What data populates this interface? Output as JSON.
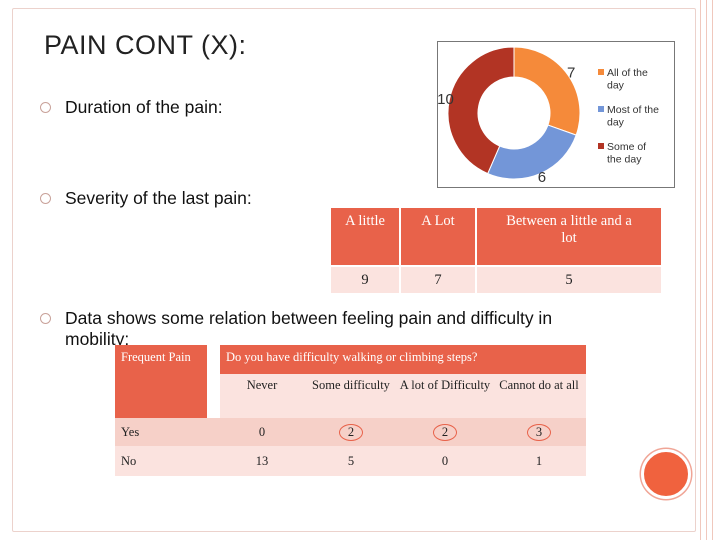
{
  "title": "PAIN CONT (X):",
  "bullets": [
    "Duration of the pain:",
    "Severity of the last pain:",
    "Data shows some relation between feeling pain and difficulty in",
    "mobility:"
  ],
  "chart_data": {
    "type": "pie",
    "style": "donut",
    "title": "",
    "categories": [
      "All of the day",
      "Most of the day",
      "Some of the day"
    ],
    "values": [
      7,
      6,
      10
    ],
    "colors": [
      "#f58a3a",
      "#7396d8",
      "#b23424"
    ],
    "legend": {
      "position": "right",
      "lines": [
        [
          "All of the",
          "day"
        ],
        [
          "Most of the",
          "day"
        ],
        [
          "Some of",
          "the day"
        ]
      ]
    }
  },
  "severity_table": {
    "headers": [
      "A little",
      "A Lot",
      "Between a little and a lot"
    ],
    "header_lines": [
      [
        "A little"
      ],
      [
        "A Lot"
      ],
      [
        "Between a little and a",
        "lot"
      ]
    ],
    "values": [
      "9",
      "7",
      "5"
    ]
  },
  "mobility_table": {
    "corner": "Frequent Pain",
    "question": "Do you have difficulty walking or climbing steps?",
    "columns": [
      "Never",
      "Some difficulty",
      "A lot of Difficulty",
      "Cannot do at all"
    ],
    "rows": [
      {
        "label": "Yes",
        "values": [
          "0",
          "2",
          "2",
          "3"
        ]
      },
      {
        "label": "No",
        "values": [
          "13",
          "5",
          "0",
          "1"
        ]
      }
    ]
  },
  "colors": {
    "accent": "#e8624a",
    "row_light": "#fbe3df",
    "row_mid": "#f6d0c8"
  }
}
